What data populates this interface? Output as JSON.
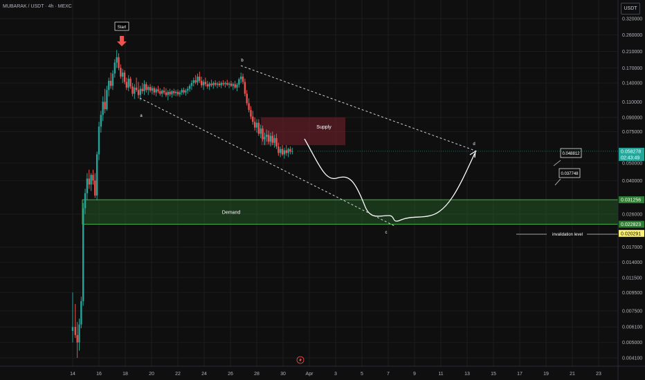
{
  "header": {
    "symbol_line": "MUBARAK / USDT · 4h · MEXC",
    "currency": "USDT"
  },
  "colors": {
    "background": "#0f0f0f",
    "up": "#26a69a",
    "down": "#ef5350",
    "demand": "#2f7d32",
    "supply": "#7b2230",
    "accent_green": "#00c853"
  },
  "chart_data": {
    "type": "candlestick",
    "scale": "log",
    "y_ticks": [
      0.32,
      0.26,
      0.21,
      0.17,
      0.14,
      0.11,
      0.09,
      0.075,
      0.05,
      0.04,
      0.026,
      0.017,
      0.014,
      0.0115,
      0.0095,
      0.0075,
      0.0061,
      0.005,
      0.0041
    ],
    "y_tick_labels": [
      "0.320000",
      "0.260000",
      "0.210000",
      "0.170000",
      "0.140000",
      "0.110000",
      "0.090000",
      "0.075000",
      "0.050000",
      "0.040000",
      "0.026000",
      "0.017000",
      "0.014000",
      "0.011500",
      "0.009500",
      "0.007500",
      "0.006100",
      "0.005000",
      "0.004100"
    ],
    "x_ticks": [
      "14",
      "16",
      "18",
      "20",
      "22",
      "24",
      "26",
      "28",
      "30",
      "Apr",
      "3",
      "5",
      "7",
      "9",
      "11",
      "13",
      "15",
      "17",
      "19",
      "21",
      "23"
    ],
    "price_tags": [
      {
        "value": 0.058278,
        "label": "0.058278",
        "sub": "02:43:49",
        "color": "#26a69a",
        "text": "#ffffff"
      },
      {
        "value": 0.031256,
        "label": "0.031256",
        "color": "#2e7d32",
        "text": "#ffffff"
      },
      {
        "value": 0.022823,
        "label": "0.022823",
        "color": "#2e7d32",
        "text": "#ffffff"
      },
      {
        "value": 0.020291,
        "label": "0.020291",
        "color": "#fff176",
        "text": "#000000"
      }
    ],
    "zones": [
      {
        "name": "Demand",
        "top": 0.031256,
        "bottom": 0.022823
      },
      {
        "name": "Supply",
        "top": 0.09,
        "bottom": 0.063
      }
    ],
    "wave_labels": [
      "Start",
      "a",
      "b",
      "c",
      "d"
    ],
    "callouts": [
      "0.048812",
      "0.037748"
    ],
    "invalidation_label": "invalidation level",
    "candles": [
      {
        "d": 14.0,
        "o": 0.0058,
        "h": 0.0095,
        "l": 0.005,
        "c": 0.0061
      },
      {
        "d": 14.2,
        "o": 0.0061,
        "h": 0.0082,
        "l": 0.0053,
        "c": 0.0055
      },
      {
        "d": 14.35,
        "o": 0.0055,
        "h": 0.0065,
        "l": 0.0041,
        "c": 0.005
      },
      {
        "d": 14.5,
        "o": 0.005,
        "h": 0.0068,
        "l": 0.0045,
        "c": 0.0063
      },
      {
        "d": 14.65,
        "o": 0.0063,
        "h": 0.009,
        "l": 0.006,
        "c": 0.0085
      },
      {
        "d": 14.8,
        "o": 0.0085,
        "h": 0.03,
        "l": 0.008,
        "c": 0.028
      },
      {
        "d": 14.95,
        "o": 0.028,
        "h": 0.036,
        "l": 0.026,
        "c": 0.034
      },
      {
        "d": 15.1,
        "o": 0.034,
        "h": 0.044,
        "l": 0.031,
        "c": 0.041
      },
      {
        "d": 15.25,
        "o": 0.041,
        "h": 0.046,
        "l": 0.036,
        "c": 0.038
      },
      {
        "d": 15.4,
        "o": 0.038,
        "h": 0.044,
        "l": 0.035,
        "c": 0.043
      },
      {
        "d": 15.55,
        "o": 0.043,
        "h": 0.046,
        "l": 0.038,
        "c": 0.04
      },
      {
        "d": 15.7,
        "o": 0.04,
        "h": 0.044,
        "l": 0.032,
        "c": 0.033
      },
      {
        "d": 15.85,
        "o": 0.033,
        "h": 0.058,
        "l": 0.031,
        "c": 0.056
      },
      {
        "d": 16.0,
        "o": 0.056,
        "h": 0.085,
        "l": 0.052,
        "c": 0.08
      },
      {
        "d": 16.15,
        "o": 0.08,
        "h": 0.098,
        "l": 0.074,
        "c": 0.093
      },
      {
        "d": 16.3,
        "o": 0.093,
        "h": 0.118,
        "l": 0.086,
        "c": 0.11
      },
      {
        "d": 16.45,
        "o": 0.11,
        "h": 0.13,
        "l": 0.095,
        "c": 0.1
      },
      {
        "d": 16.6,
        "o": 0.1,
        "h": 0.135,
        "l": 0.098,
        "c": 0.128
      },
      {
        "d": 16.75,
        "o": 0.128,
        "h": 0.15,
        "l": 0.118,
        "c": 0.144
      },
      {
        "d": 16.9,
        "o": 0.144,
        "h": 0.16,
        "l": 0.13,
        "c": 0.135
      },
      {
        "d": 17.05,
        "o": 0.135,
        "h": 0.165,
        "l": 0.128,
        "c": 0.158
      },
      {
        "d": 17.2,
        "o": 0.158,
        "h": 0.19,
        "l": 0.15,
        "c": 0.182
      },
      {
        "d": 17.35,
        "o": 0.182,
        "h": 0.214,
        "l": 0.17,
        "c": 0.195
      },
      {
        "d": 17.5,
        "o": 0.195,
        "h": 0.205,
        "l": 0.165,
        "c": 0.17
      },
      {
        "d": 17.65,
        "o": 0.17,
        "h": 0.178,
        "l": 0.148,
        "c": 0.152
      },
      {
        "d": 17.8,
        "o": 0.152,
        "h": 0.168,
        "l": 0.14,
        "c": 0.16
      },
      {
        "d": 17.95,
        "o": 0.16,
        "h": 0.165,
        "l": 0.138,
        "c": 0.142
      },
      {
        "d": 18.1,
        "o": 0.142,
        "h": 0.15,
        "l": 0.128,
        "c": 0.132
      },
      {
        "d": 18.25,
        "o": 0.132,
        "h": 0.155,
        "l": 0.126,
        "c": 0.148
      },
      {
        "d": 18.4,
        "o": 0.148,
        "h": 0.152,
        "l": 0.13,
        "c": 0.134
      },
      {
        "d": 18.55,
        "o": 0.134,
        "h": 0.14,
        "l": 0.118,
        "c": 0.122
      },
      {
        "d": 18.7,
        "o": 0.122,
        "h": 0.138,
        "l": 0.114,
        "c": 0.132
      },
      {
        "d": 18.85,
        "o": 0.132,
        "h": 0.15,
        "l": 0.125,
        "c": 0.128
      },
      {
        "d": 19.0,
        "o": 0.128,
        "h": 0.142,
        "l": 0.115,
        "c": 0.12
      },
      {
        "d": 19.15,
        "o": 0.12,
        "h": 0.135,
        "l": 0.112,
        "c": 0.13
      },
      {
        "d": 19.3,
        "o": 0.13,
        "h": 0.14,
        "l": 0.122,
        "c": 0.126
      },
      {
        "d": 19.45,
        "o": 0.126,
        "h": 0.145,
        "l": 0.12,
        "c": 0.138
      },
      {
        "d": 19.6,
        "o": 0.138,
        "h": 0.142,
        "l": 0.124,
        "c": 0.128
      },
      {
        "d": 19.75,
        "o": 0.128,
        "h": 0.136,
        "l": 0.12,
        "c": 0.133
      },
      {
        "d": 19.9,
        "o": 0.133,
        "h": 0.138,
        "l": 0.124,
        "c": 0.127
      },
      {
        "d": 20.05,
        "o": 0.127,
        "h": 0.135,
        "l": 0.121,
        "c": 0.131
      },
      {
        "d": 20.2,
        "o": 0.131,
        "h": 0.134,
        "l": 0.12,
        "c": 0.124
      },
      {
        "d": 20.35,
        "o": 0.124,
        "h": 0.132,
        "l": 0.118,
        "c": 0.129
      },
      {
        "d": 20.5,
        "o": 0.129,
        "h": 0.135,
        "l": 0.123,
        "c": 0.126
      },
      {
        "d": 20.65,
        "o": 0.126,
        "h": 0.131,
        "l": 0.119,
        "c": 0.122
      },
      {
        "d": 20.8,
        "o": 0.122,
        "h": 0.129,
        "l": 0.117,
        "c": 0.127
      },
      {
        "d": 20.95,
        "o": 0.127,
        "h": 0.133,
        "l": 0.121,
        "c": 0.124
      },
      {
        "d": 21.1,
        "o": 0.124,
        "h": 0.131,
        "l": 0.117,
        "c": 0.12
      },
      {
        "d": 21.25,
        "o": 0.12,
        "h": 0.128,
        "l": 0.112,
        "c": 0.125
      },
      {
        "d": 21.4,
        "o": 0.125,
        "h": 0.13,
        "l": 0.118,
        "c": 0.121
      },
      {
        "d": 21.55,
        "o": 0.121,
        "h": 0.128,
        "l": 0.116,
        "c": 0.126
      },
      {
        "d": 21.7,
        "o": 0.126,
        "h": 0.13,
        "l": 0.119,
        "c": 0.123
      },
      {
        "d": 21.85,
        "o": 0.123,
        "h": 0.128,
        "l": 0.118,
        "c": 0.125
      },
      {
        "d": 22.0,
        "o": 0.125,
        "h": 0.129,
        "l": 0.118,
        "c": 0.121
      },
      {
        "d": 22.15,
        "o": 0.121,
        "h": 0.127,
        "l": 0.117,
        "c": 0.124
      },
      {
        "d": 22.3,
        "o": 0.124,
        "h": 0.131,
        "l": 0.12,
        "c": 0.128
      },
      {
        "d": 22.45,
        "o": 0.128,
        "h": 0.132,
        "l": 0.121,
        "c": 0.124
      },
      {
        "d": 22.6,
        "o": 0.124,
        "h": 0.13,
        "l": 0.119,
        "c": 0.127
      },
      {
        "d": 22.75,
        "o": 0.127,
        "h": 0.134,
        "l": 0.122,
        "c": 0.13
      },
      {
        "d": 22.9,
        "o": 0.13,
        "h": 0.138,
        "l": 0.125,
        "c": 0.135
      },
      {
        "d": 23.05,
        "o": 0.135,
        "h": 0.145,
        "l": 0.128,
        "c": 0.14
      },
      {
        "d": 23.2,
        "o": 0.14,
        "h": 0.15,
        "l": 0.134,
        "c": 0.145
      },
      {
        "d": 23.35,
        "o": 0.145,
        "h": 0.155,
        "l": 0.138,
        "c": 0.141
      },
      {
        "d": 23.5,
        "o": 0.141,
        "h": 0.158,
        "l": 0.136,
        "c": 0.152
      },
      {
        "d": 23.65,
        "o": 0.152,
        "h": 0.162,
        "l": 0.14,
        "c": 0.144
      },
      {
        "d": 23.8,
        "o": 0.144,
        "h": 0.152,
        "l": 0.132,
        "c": 0.136
      },
      {
        "d": 23.95,
        "o": 0.136,
        "h": 0.146,
        "l": 0.128,
        "c": 0.142
      },
      {
        "d": 24.1,
        "o": 0.142,
        "h": 0.15,
        "l": 0.134,
        "c": 0.138
      },
      {
        "d": 24.25,
        "o": 0.138,
        "h": 0.144,
        "l": 0.13,
        "c": 0.134
      },
      {
        "d": 24.4,
        "o": 0.134,
        "h": 0.142,
        "l": 0.128,
        "c": 0.139
      },
      {
        "d": 24.55,
        "o": 0.139,
        "h": 0.146,
        "l": 0.133,
        "c": 0.136
      },
      {
        "d": 24.7,
        "o": 0.136,
        "h": 0.143,
        "l": 0.13,
        "c": 0.14
      },
      {
        "d": 24.85,
        "o": 0.14,
        "h": 0.145,
        "l": 0.134,
        "c": 0.137
      },
      {
        "d": 25.0,
        "o": 0.137,
        "h": 0.142,
        "l": 0.131,
        "c": 0.139
      },
      {
        "d": 25.15,
        "o": 0.139,
        "h": 0.144,
        "l": 0.133,
        "c": 0.136
      },
      {
        "d": 25.3,
        "o": 0.136,
        "h": 0.143,
        "l": 0.131,
        "c": 0.14
      },
      {
        "d": 25.45,
        "o": 0.14,
        "h": 0.145,
        "l": 0.135,
        "c": 0.138
      },
      {
        "d": 25.6,
        "o": 0.138,
        "h": 0.143,
        "l": 0.132,
        "c": 0.14
      },
      {
        "d": 25.75,
        "o": 0.14,
        "h": 0.146,
        "l": 0.135,
        "c": 0.137
      },
      {
        "d": 25.9,
        "o": 0.137,
        "h": 0.142,
        "l": 0.131,
        "c": 0.139
      },
      {
        "d": 26.05,
        "o": 0.139,
        "h": 0.144,
        "l": 0.133,
        "c": 0.135
      },
      {
        "d": 26.2,
        "o": 0.135,
        "h": 0.141,
        "l": 0.128,
        "c": 0.138
      },
      {
        "d": 26.35,
        "o": 0.138,
        "h": 0.144,
        "l": 0.13,
        "c": 0.132
      },
      {
        "d": 26.5,
        "o": 0.132,
        "h": 0.14,
        "l": 0.126,
        "c": 0.137
      },
      {
        "d": 26.65,
        "o": 0.137,
        "h": 0.15,
        "l": 0.132,
        "c": 0.147
      },
      {
        "d": 26.8,
        "o": 0.147,
        "h": 0.16,
        "l": 0.14,
        "c": 0.152
      },
      {
        "d": 26.95,
        "o": 0.152,
        "h": 0.158,
        "l": 0.138,
        "c": 0.142
      },
      {
        "d": 27.1,
        "o": 0.142,
        "h": 0.148,
        "l": 0.118,
        "c": 0.122
      },
      {
        "d": 27.25,
        "o": 0.122,
        "h": 0.128,
        "l": 0.105,
        "c": 0.108
      },
      {
        "d": 27.4,
        "o": 0.108,
        "h": 0.115,
        "l": 0.096,
        "c": 0.099
      },
      {
        "d": 27.55,
        "o": 0.099,
        "h": 0.104,
        "l": 0.088,
        "c": 0.091
      },
      {
        "d": 27.7,
        "o": 0.091,
        "h": 0.098,
        "l": 0.082,
        "c": 0.085
      },
      {
        "d": 27.85,
        "o": 0.085,
        "h": 0.09,
        "l": 0.076,
        "c": 0.079
      },
      {
        "d": 28.0,
        "o": 0.079,
        "h": 0.088,
        "l": 0.074,
        "c": 0.084
      },
      {
        "d": 28.15,
        "o": 0.084,
        "h": 0.088,
        "l": 0.071,
        "c": 0.073
      },
      {
        "d": 28.3,
        "o": 0.073,
        "h": 0.082,
        "l": 0.069,
        "c": 0.078
      },
      {
        "d": 28.45,
        "o": 0.078,
        "h": 0.081,
        "l": 0.066,
        "c": 0.068
      },
      {
        "d": 28.6,
        "o": 0.068,
        "h": 0.074,
        "l": 0.063,
        "c": 0.07
      },
      {
        "d": 28.75,
        "o": 0.07,
        "h": 0.077,
        "l": 0.066,
        "c": 0.072
      },
      {
        "d": 28.9,
        "o": 0.072,
        "h": 0.076,
        "l": 0.064,
        "c": 0.066
      },
      {
        "d": 29.05,
        "o": 0.066,
        "h": 0.074,
        "l": 0.062,
        "c": 0.071
      },
      {
        "d": 29.2,
        "o": 0.071,
        "h": 0.075,
        "l": 0.063,
        "c": 0.065
      },
      {
        "d": 29.35,
        "o": 0.065,
        "h": 0.072,
        "l": 0.061,
        "c": 0.069
      },
      {
        "d": 29.5,
        "o": 0.069,
        "h": 0.073,
        "l": 0.06,
        "c": 0.062
      },
      {
        "d": 29.65,
        "o": 0.062,
        "h": 0.065,
        "l": 0.055,
        "c": 0.057
      },
      {
        "d": 29.8,
        "o": 0.057,
        "h": 0.062,
        "l": 0.054,
        "c": 0.06
      },
      {
        "d": 29.95,
        "o": 0.06,
        "h": 0.063,
        "l": 0.055,
        "c": 0.056
      },
      {
        "d": 30.1,
        "o": 0.056,
        "h": 0.061,
        "l": 0.053,
        "c": 0.059
      },
      {
        "d": 30.25,
        "o": 0.059,
        "h": 0.063,
        "l": 0.055,
        "c": 0.057
      },
      {
        "d": 30.4,
        "o": 0.057,
        "h": 0.061,
        "l": 0.054,
        "c": 0.06
      },
      {
        "d": 30.55,
        "o": 0.06,
        "h": 0.062,
        "l": 0.056,
        "c": 0.058
      },
      {
        "d": 30.7,
        "o": 0.058,
        "h": 0.061,
        "l": 0.056,
        "c": 0.0583
      }
    ]
  }
}
